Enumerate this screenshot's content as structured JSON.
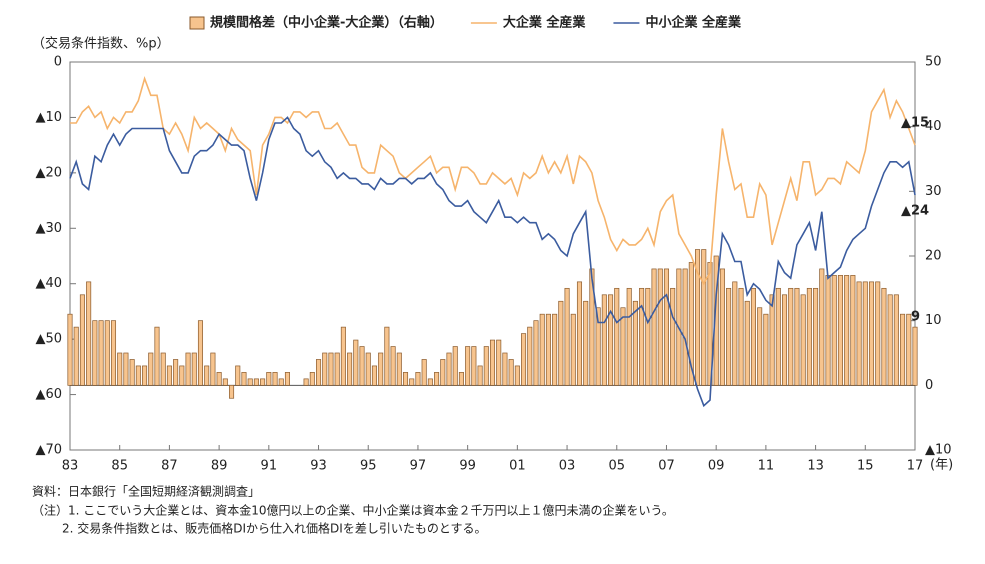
{
  "chart_data": {
    "type": "bar-line",
    "y_axis_label": "（交易条件指数、%p）",
    "x_unit_label": "(年)",
    "categories": [
      "83",
      null,
      null,
      null,
      null,
      null,
      null,
      null,
      "85",
      null,
      null,
      null,
      null,
      null,
      null,
      null,
      "87",
      null,
      null,
      null,
      null,
      null,
      null,
      null,
      "89",
      null,
      null,
      null,
      null,
      null,
      null,
      null,
      "91",
      null,
      null,
      null,
      null,
      null,
      null,
      null,
      "93",
      null,
      null,
      null,
      null,
      null,
      null,
      null,
      "95",
      null,
      null,
      null,
      null,
      null,
      null,
      null,
      "97",
      null,
      null,
      null,
      null,
      null,
      null,
      null,
      "99",
      null,
      null,
      null,
      null,
      null,
      null,
      null,
      "01",
      null,
      null,
      null,
      null,
      null,
      null,
      null,
      "03",
      null,
      null,
      null,
      null,
      null,
      null,
      null,
      "05",
      null,
      null,
      null,
      null,
      null,
      null,
      null,
      "07",
      null,
      null,
      null,
      null,
      null,
      null,
      null,
      "09",
      null,
      null,
      null,
      null,
      null,
      null,
      null,
      "11",
      null,
      null,
      null,
      null,
      null,
      null,
      null,
      "13",
      null,
      null,
      null,
      null,
      null,
      null,
      null,
      "15",
      null,
      null,
      null,
      null,
      null,
      null,
      null,
      "17"
    ],
    "series": [
      {
        "name": "規模間格差（中小企業-大企業）（右軸）",
        "type": "bar",
        "axis": "y2",
        "color": "#f7c48e",
        "stroke": "#8a5a2c",
        "values": [
          11,
          9,
          14,
          16,
          10,
          10,
          10,
          10,
          5,
          5,
          4,
          3,
          3,
          5,
          9,
          5,
          3,
          4,
          3,
          5,
          5,
          10,
          3,
          5,
          2,
          1,
          -2,
          3,
          2,
          1,
          1,
          1,
          2,
          2,
          1,
          2,
          0,
          0,
          1,
          2,
          4,
          5,
          5,
          5,
          9,
          5,
          7,
          6,
          5,
          3,
          5,
          9,
          6,
          5,
          2,
          1,
          2,
          4,
          1,
          2,
          4,
          5,
          6,
          2,
          6,
          6,
          3,
          6,
          7,
          7,
          5,
          4,
          3,
          8,
          9,
          10,
          11,
          11,
          11,
          13,
          15,
          11,
          16,
          13,
          18,
          12,
          14,
          14,
          15,
          12,
          15,
          13,
          15,
          15,
          18,
          18,
          18,
          15,
          18,
          18,
          19,
          21,
          21,
          19,
          20,
          18,
          15,
          16,
          15,
          13,
          15,
          12,
          11,
          14,
          15,
          14,
          15,
          15,
          14,
          15,
          15,
          18,
          17,
          17,
          17,
          17,
          17,
          16,
          16,
          16,
          16,
          15,
          14,
          14,
          11,
          11,
          9
        ]
      },
      {
        "name": "大企業 全産業",
        "type": "line",
        "color": "#f6b46c",
        "values": [
          -11,
          -11,
          -9,
          -8,
          -10,
          -9,
          -12,
          -10,
          -11,
          -9,
          -9,
          -7,
          -3,
          -6,
          -6,
          -12,
          -13,
          -11,
          -13,
          -16,
          -10,
          -12,
          -11,
          -12,
          -13,
          -16,
          -12,
          -14,
          -15,
          -16,
          -24,
          -15,
          -13,
          -10,
          -10,
          -11,
          -9,
          -9,
          -10,
          -9,
          -9,
          -12,
          -12,
          -11,
          -13,
          -15,
          -15,
          -19,
          -20,
          -20,
          -15,
          -16,
          -17,
          -20,
          -21,
          -20,
          -19,
          -18,
          -17,
          -20,
          -19,
          -19,
          -23,
          -19,
          -19,
          -20,
          -22,
          -22,
          -20,
          -21,
          -22,
          -21,
          -24,
          -20,
          -21,
          -20,
          -17,
          -20,
          -18,
          -20,
          -17,
          -22,
          -17,
          -18,
          -20,
          -25,
          -28,
          -32,
          -34,
          -32,
          -33,
          -33,
          -32,
          -30,
          -33,
          -27,
          -25,
          -24,
          -31,
          -33,
          -35,
          -38,
          -40,
          -38,
          -24,
          -12,
          -18,
          -23,
          -22,
          -28,
          -28,
          -22,
          -24,
          -33,
          -29,
          -25,
          -21,
          -25,
          -18,
          -18,
          -24,
          -23,
          -21,
          -21,
          -22,
          -18,
          -19,
          -20,
          -16,
          -9,
          -7,
          -5,
          -10,
          -7,
          -9,
          -12,
          -15
        ]
      },
      {
        "name": "中小企業 全産業",
        "type": "line",
        "color": "#3b5c9f",
        "values": [
          -21,
          -18,
          -22,
          -23,
          -17,
          -18,
          -15,
          -13,
          -15,
          -13,
          -12,
          -12,
          -12,
          -12,
          -12,
          -12,
          -16,
          -18,
          -20,
          -20,
          -17,
          -16,
          -16,
          -15,
          -13,
          -14,
          -15,
          -15,
          -16,
          -21,
          -25,
          -20,
          -14,
          -11,
          -11,
          -10,
          -12,
          -13,
          -16,
          -17,
          -16,
          -18,
          -19,
          -21,
          -20,
          -21,
          -21,
          -22,
          -22,
          -23,
          -21,
          -22,
          -22,
          -21,
          -21,
          -22,
          -21,
          -21,
          -20,
          -22,
          -23,
          -25,
          -26,
          -26,
          -25,
          -27,
          -28,
          -29,
          -27,
          -25,
          -28,
          -28,
          -29,
          -28,
          -29,
          -29,
          -32,
          -31,
          -32,
          -34,
          -35,
          -31,
          -29,
          -27,
          -39,
          -47,
          -47,
          -45,
          -47,
          -46,
          -46,
          -45,
          -44,
          -47,
          -45,
          -43,
          -42,
          -46,
          -48,
          -50,
          -55,
          -59,
          -62,
          -61,
          -42,
          -31,
          -33,
          -36,
          -36,
          -42,
          -40,
          -41,
          -43,
          -44,
          -36,
          -38,
          -39,
          -33,
          -31,
          -29,
          -34,
          -27,
          -39,
          -38,
          -37,
          -34,
          -32,
          -31,
          -30,
          -26,
          -23,
          -20,
          -18,
          -18,
          -19,
          -18,
          -24
        ]
      }
    ],
    "annotations": [
      "9",
      "▲15",
      "▲24"
    ],
    "ylim": [
      -70,
      0
    ],
    "yticks": [
      0,
      {
        "value": -10,
        "label": "▲10"
      },
      {
        "value": -20,
        "label": "▲20"
      },
      {
        "value": -30,
        "label": "▲30"
      },
      {
        "value": -40,
        "label": "▲40"
      },
      {
        "value": -50,
        "label": "▲50"
      },
      {
        "value": -60,
        "label": "▲60"
      },
      {
        "value": -70,
        "label": "▲70"
      }
    ],
    "y2lim": [
      -10,
      50
    ],
    "y2ticks": [
      50,
      40,
      30,
      20,
      10,
      0,
      {
        "value": -10,
        "label": "▲10"
      }
    ],
    "notes": [
      "資料：日本銀行「全国短期経済観測調査」",
      "（注）1. ここでいう大企業とは、資本金10億円以上の企業、中小企業は資本金２千万円以上１億円未満の企業をいう。",
      "2. 交易条件指数とは、販売価格DIから仕入れ価格DIを差し引いたものとする。"
    ]
  }
}
